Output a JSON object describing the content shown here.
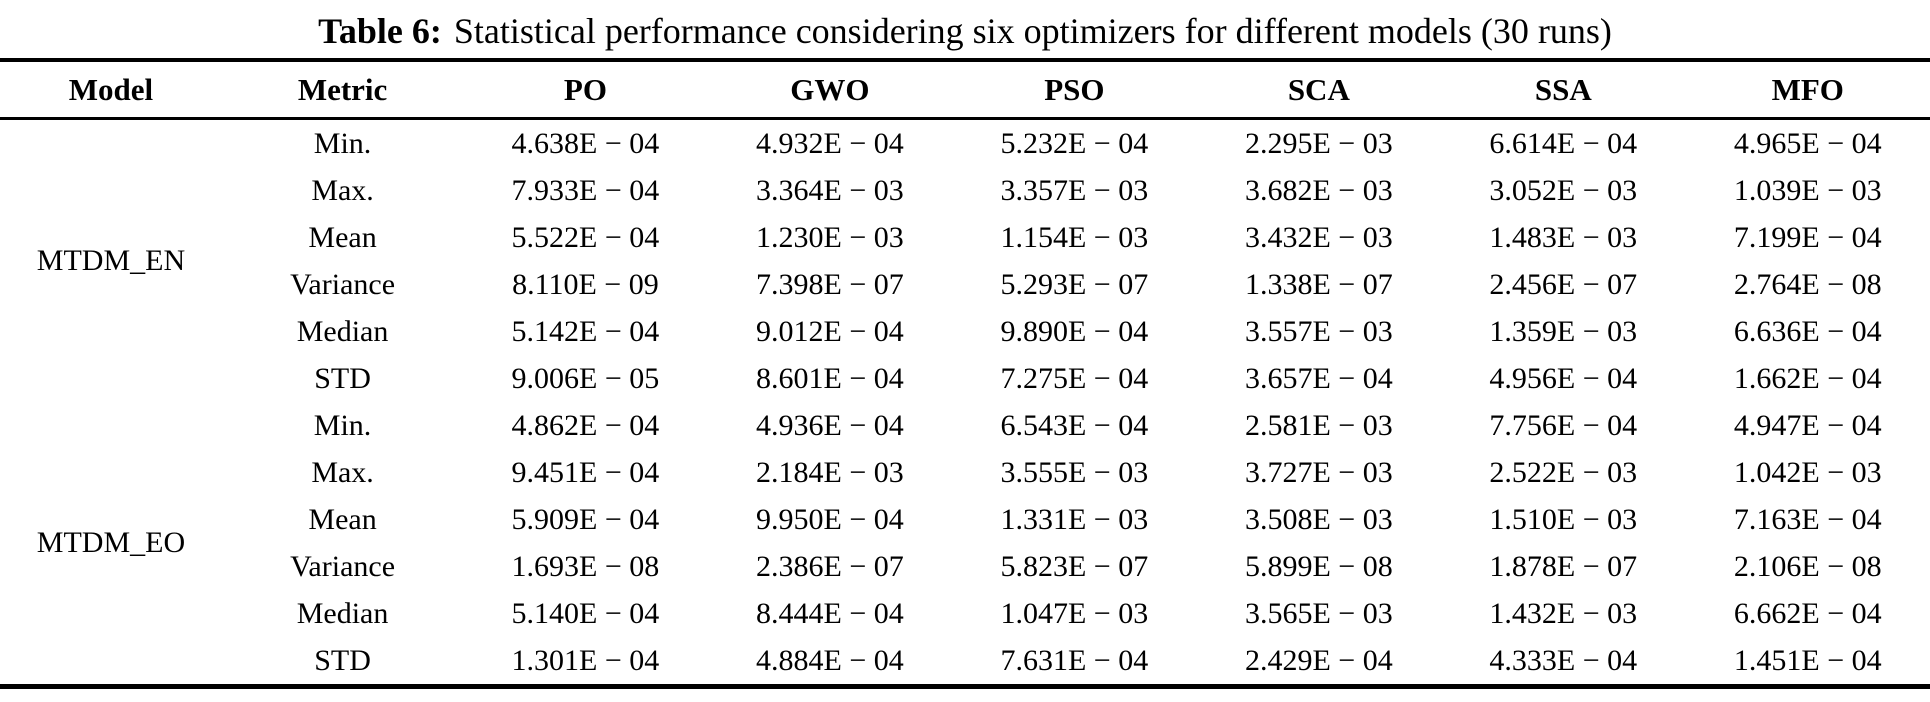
{
  "caption": {
    "label": "Table 6:",
    "text": "Statistical performance considering six optimizers for different models (30 runs)"
  },
  "table": {
    "columns": [
      "Model",
      "Metric",
      "PO",
      "GWO",
      "PSO",
      "SCA",
      "SSA",
      "MFO"
    ],
    "groups": [
      {
        "model": "MTDM_EN",
        "rows": [
          {
            "metric": "Min.",
            "values": [
              "4.638E − 04",
              "4.932E − 04",
              "5.232E − 04",
              "2.295E − 03",
              "6.614E − 04",
              "4.965E − 04"
            ]
          },
          {
            "metric": "Max.",
            "values": [
              "7.933E − 04",
              "3.364E − 03",
              "3.357E − 03",
              "3.682E − 03",
              "3.052E − 03",
              "1.039E − 03"
            ]
          },
          {
            "metric": "Mean",
            "values": [
              "5.522E − 04",
              "1.230E − 03",
              "1.154E − 03",
              "3.432E − 03",
              "1.483E − 03",
              "7.199E − 04"
            ]
          },
          {
            "metric": "Variance",
            "values": [
              "8.110E − 09",
              "7.398E − 07",
              "5.293E − 07",
              "1.338E − 07",
              "2.456E − 07",
              "2.764E − 08"
            ]
          },
          {
            "metric": "Median",
            "values": [
              "5.142E − 04",
              "9.012E − 04",
              "9.890E − 04",
              "3.557E − 03",
              "1.359E − 03",
              "6.636E − 04"
            ]
          },
          {
            "metric": "STD",
            "values": [
              "9.006E − 05",
              "8.601E − 04",
              "7.275E − 04",
              "3.657E − 04",
              "4.956E − 04",
              "1.662E − 04"
            ]
          }
        ]
      },
      {
        "model": "MTDM_EO",
        "rows": [
          {
            "metric": "Min.",
            "values": [
              "4.862E − 04",
              "4.936E − 04",
              "6.543E − 04",
              "2.581E − 03",
              "7.756E − 04",
              "4.947E − 04"
            ]
          },
          {
            "metric": "Max.",
            "values": [
              "9.451E − 04",
              "2.184E − 03",
              "3.555E − 03",
              "3.727E − 03",
              "2.522E − 03",
              "1.042E − 03"
            ]
          },
          {
            "metric": "Mean",
            "values": [
              "5.909E − 04",
              "9.950E − 04",
              "1.331E − 03",
              "3.508E − 03",
              "1.510E − 03",
              "7.163E − 04"
            ]
          },
          {
            "metric": "Variance",
            "values": [
              "1.693E − 08",
              "2.386E − 07",
              "5.823E − 07",
              "5.899E − 08",
              "1.878E − 07",
              "2.106E − 08"
            ]
          },
          {
            "metric": "Median",
            "values": [
              "5.140E − 04",
              "8.444E − 04",
              "1.047E − 03",
              "3.565E − 03",
              "1.432E − 03",
              "6.662E − 04"
            ]
          },
          {
            "metric": "STD",
            "values": [
              "1.301E − 04",
              "4.884E − 04",
              "7.631E − 04",
              "2.429E − 04",
              "4.333E − 04",
              "1.451E − 04"
            ]
          }
        ]
      }
    ]
  },
  "chart_data": {
    "type": "table",
    "title": "Table 6: Statistical performance considering six optimizers for different models (30 runs)",
    "columns": [
      "Model",
      "Metric",
      "PO",
      "GWO",
      "PSO",
      "SCA",
      "SSA",
      "MFO"
    ]
  }
}
